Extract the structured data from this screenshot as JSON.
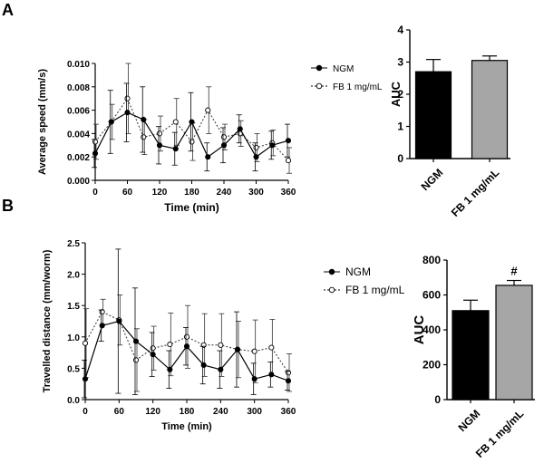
{
  "panel_labels": [
    "A",
    "B"
  ],
  "colors": {
    "ngm": "#000000",
    "fb": "#a6a6a6",
    "fb_line": "#444444",
    "axis": "#000000"
  },
  "chart_data": [
    {
      "panel": "A",
      "type": "line",
      "xlabel": "Time (min)",
      "ylabel": "Average speed (mm/s)",
      "xlim": [
        0,
        360
      ],
      "ylim": [
        0,
        0.01
      ],
      "xticks": [
        0,
        60,
        120,
        180,
        240,
        300,
        360
      ],
      "xtick_labels": [
        "0",
        "60",
        "120",
        "180",
        "240",
        "300",
        "360"
      ],
      "yticks": [
        0,
        0.002,
        0.004,
        0.006,
        0.008,
        0.01
      ],
      "ytick_labels": [
        "0.000",
        "0.002",
        "0.004",
        "0.006",
        "0.008",
        "0.010"
      ],
      "legend": "right",
      "x": [
        0,
        30,
        60,
        90,
        120,
        150,
        180,
        210,
        240,
        270,
        300,
        330,
        360
      ],
      "series": [
        {
          "name": "NGM",
          "style": "solid",
          "values": [
            0.0023,
            0.005,
            0.0058,
            0.0052,
            0.003,
            0.0027,
            0.005,
            0.002,
            0.003,
            0.0044,
            0.002,
            0.003,
            0.0034
          ],
          "errors": [
            0.0012,
            0.0027,
            0.0025,
            0.0028,
            0.0016,
            0.0014,
            0.0025,
            0.0012,
            0.0015,
            0.0012,
            0.0012,
            0.0012,
            0.0014
          ]
        },
        {
          "name": "FB 1 mg/mL",
          "style": "dotted",
          "values": [
            0.0033,
            0.005,
            0.007,
            0.0037,
            0.004,
            0.005,
            0.0033,
            0.006,
            0.0037,
            0.004,
            0.0028,
            0.0032,
            0.0017
          ],
          "errors": [
            0.0015,
            0.0015,
            0.003,
            0.0015,
            0.0015,
            0.002,
            0.0016,
            0.002,
            0.0011,
            0.0011,
            0.0012,
            0.0011,
            0.0011
          ]
        }
      ]
    },
    {
      "panel": "A",
      "type": "bar",
      "ylabel": "AUC",
      "ylim": [
        0,
        4
      ],
      "yticks": [
        0,
        1,
        2,
        3,
        4
      ],
      "ytick_labels": [
        "0",
        "1",
        "2",
        "3",
        "4"
      ],
      "categories": [
        "NGM",
        "FB 1 mg/mL"
      ],
      "values": [
        2.7,
        3.05
      ],
      "errors": [
        0.38,
        0.14
      ],
      "annotations": [
        "",
        ""
      ]
    },
    {
      "panel": "B",
      "type": "line",
      "xlabel": "Time (min)",
      "ylabel": "Travelled distance (mm/worm)",
      "xlim": [
        0,
        360
      ],
      "ylim": [
        0,
        2.5
      ],
      "xticks": [
        0,
        60,
        120,
        180,
        240,
        300,
        360
      ],
      "xtick_labels": [
        "0",
        "60",
        "120",
        "180",
        "240",
        "300",
        "360"
      ],
      "yticks": [
        0,
        0.5,
        1,
        1.5,
        2,
        2.5
      ],
      "ytick_labels": [
        "0.0",
        "0.5",
        "1.0",
        "1.5",
        "2.0",
        "2.5"
      ],
      "legend": "right",
      "x": [
        0,
        30,
        60,
        90,
        120,
        150,
        180,
        210,
        240,
        270,
        300,
        330,
        360
      ],
      "series": [
        {
          "name": "NGM",
          "style": "solid",
          "values": [
            0.33,
            1.18,
            1.25,
            0.93,
            0.72,
            0.48,
            0.85,
            0.55,
            0.48,
            0.8,
            0.33,
            0.4,
            0.3
          ],
          "errors": [
            0.3,
            0.25,
            1.15,
            0.85,
            0.35,
            0.3,
            0.3,
            0.3,
            0.3,
            0.6,
            0.25,
            0.2,
            0.15
          ]
        },
        {
          "name": "FB 1 mg/mL",
          "style": "dotted",
          "values": [
            0.9,
            1.4,
            1.27,
            0.63,
            0.82,
            0.88,
            1.0,
            0.87,
            0.87,
            0.8,
            0.77,
            0.83,
            0.43
          ],
          "errors": [
            0.55,
            0.2,
            0.4,
            0.5,
            0.35,
            0.5,
            0.5,
            0.5,
            0.5,
            0.45,
            0.5,
            0.45,
            0.3
          ]
        }
      ]
    },
    {
      "panel": "B",
      "type": "bar",
      "ylabel": "AUC",
      "ylim": [
        0,
        800
      ],
      "yticks": [
        0,
        200,
        400,
        600,
        800
      ],
      "ytick_labels": [
        "0",
        "200",
        "400",
        "600",
        "800"
      ],
      "categories": [
        "NGM",
        "FB 1 mg/mL"
      ],
      "values": [
        510,
        655
      ],
      "errors": [
        60,
        28
      ],
      "annotations": [
        "",
        "#"
      ]
    }
  ]
}
